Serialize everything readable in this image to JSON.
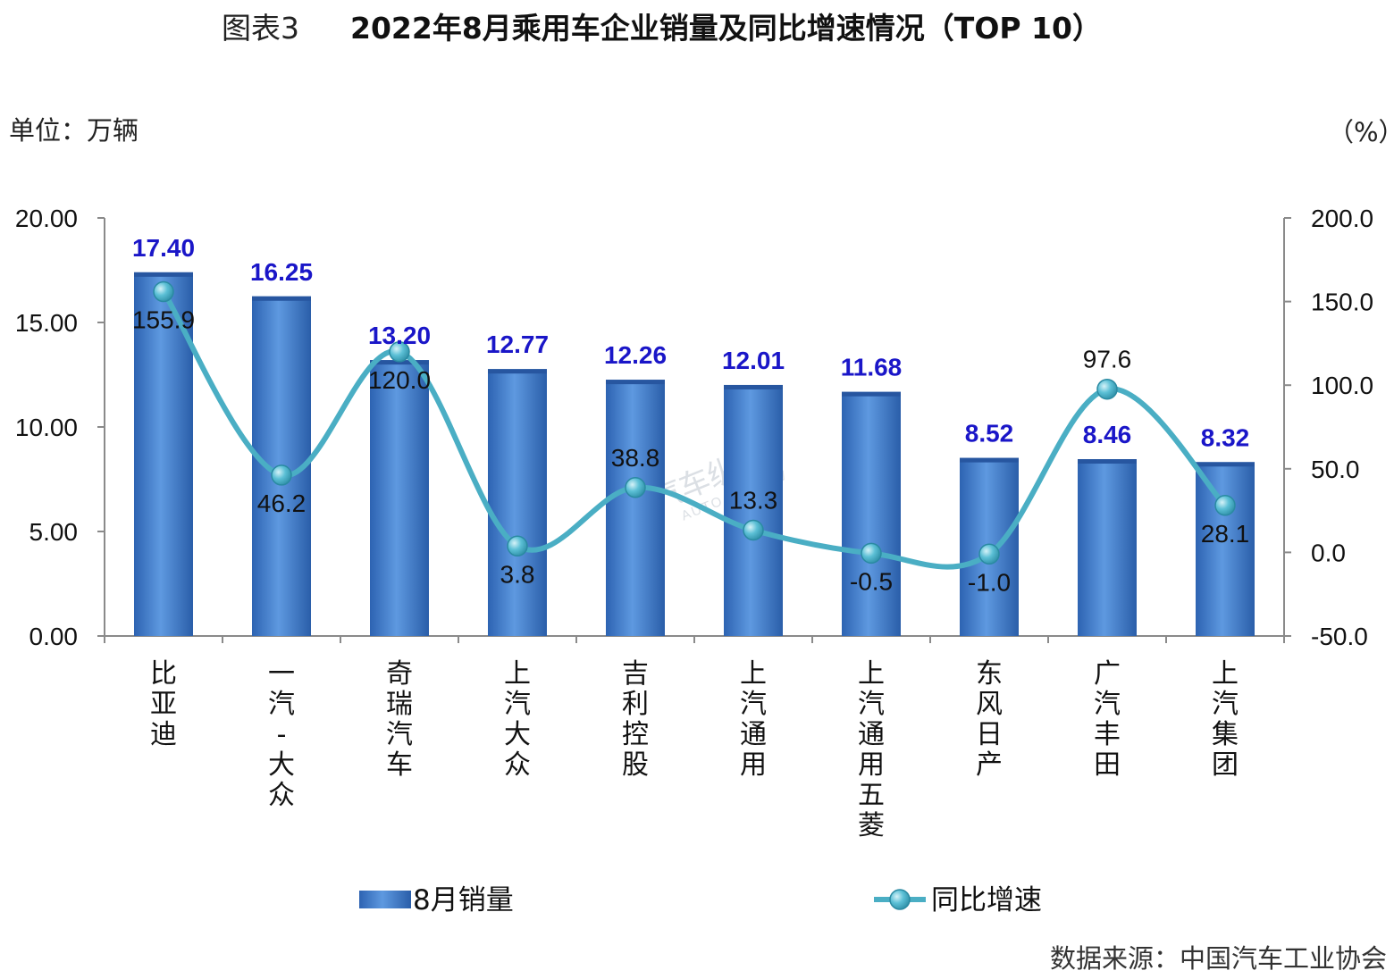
{
  "chart_data": {
    "type": "bar+line",
    "title_prefix": "图表3",
    "title": "2022年8月乘用车企业销量及同比增速情况（TOP 10）",
    "left_axis_unit": "单位：万辆",
    "right_axis_unit": "（%）",
    "left_ylim": [
      0,
      20
    ],
    "left_ticks": [
      "0.00",
      "5.00",
      "10.00",
      "15.00",
      "20.00"
    ],
    "right_ylim": [
      -50,
      200
    ],
    "right_ticks": [
      "-50.0",
      "0.0",
      "50.0",
      "100.0",
      "150.0",
      "200.0"
    ],
    "categories": [
      "比亚迪",
      "一汽-大众",
      "奇瑞汽车",
      "上汽大众",
      "吉利控股",
      "上汽通用",
      "上汽通用五菱",
      "东风日产",
      "广汽丰田",
      "上汽集团"
    ],
    "series": [
      {
        "name": "8月销量",
        "type": "bar",
        "axis": "left",
        "values": [
          17.4,
          16.25,
          13.2,
          12.77,
          12.26,
          12.01,
          11.68,
          8.52,
          8.46,
          8.32
        ],
        "labels": [
          "17.40",
          "16.25",
          "13.20",
          "12.77",
          "12.26",
          "12.01",
          "11.68",
          "8.52",
          "8.46",
          "8.32"
        ]
      },
      {
        "name": "同比增速",
        "type": "line",
        "axis": "right",
        "values": [
          155.9,
          46.2,
          120.0,
          3.8,
          38.8,
          13.3,
          -0.5,
          -1.0,
          97.6,
          28.1
        ],
        "labels": [
          "155.9",
          "46.2",
          "120.0",
          "3.8",
          "38.8",
          "13.3",
          "-0.5",
          "-1.0",
          "97.6",
          "28.1"
        ]
      }
    ],
    "legend_position": "bottom",
    "source": "数据来源：中国汽车工业协会",
    "watermark": "汽车纵横",
    "watermark_sub": "AUTO REVIEW",
    "colors": {
      "bar_light": "#6fa3e6",
      "bar_mid": "#3f7fd0",
      "bar_dark": "#2a62b4",
      "line": "#4aaec4",
      "marker": "#3aa3bd",
      "bar_label": "#1a16c8"
    }
  }
}
